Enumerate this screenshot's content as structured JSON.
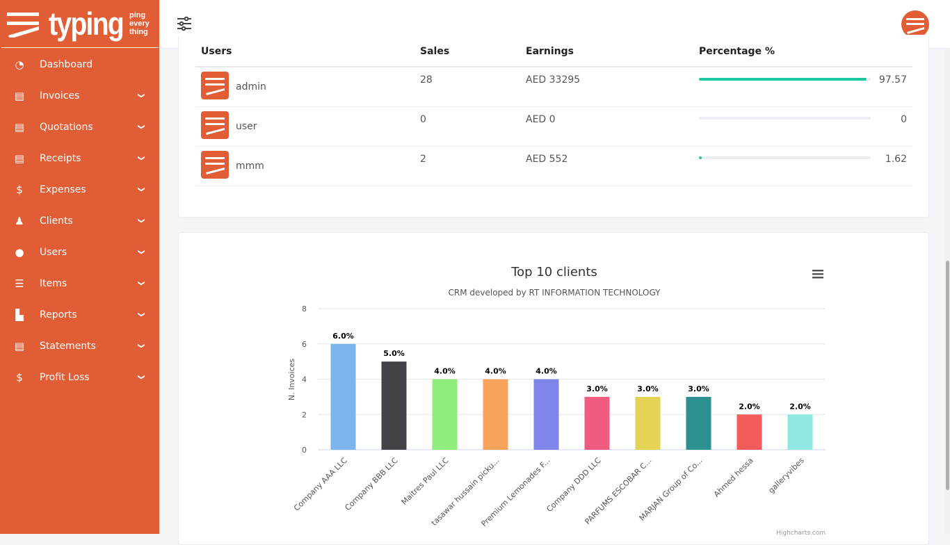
{
  "brand": {
    "word": "typing",
    "tagline": [
      "ping",
      "every",
      "thing"
    ],
    "color": "#e05d36"
  },
  "sidebar": {
    "items": [
      {
        "label": "Dashboard",
        "icon": "dashboard-gauge-icon",
        "glyph": "◔",
        "expandable": false
      },
      {
        "label": "Invoices",
        "icon": "invoice-file-icon",
        "glyph": "▤",
        "expandable": true
      },
      {
        "label": "Quotations",
        "icon": "quotation-file-icon",
        "glyph": "▤",
        "expandable": true
      },
      {
        "label": "Receipts",
        "icon": "receipt-file-icon",
        "glyph": "▤",
        "expandable": true
      },
      {
        "label": "Expenses",
        "icon": "expense-hand-icon",
        "glyph": "$",
        "expandable": true
      },
      {
        "label": "Clients",
        "icon": "clients-users-icon",
        "glyph": "♟",
        "expandable": true
      },
      {
        "label": "Users",
        "icon": "user-icon",
        "glyph": "●",
        "expandable": true
      },
      {
        "label": "Items",
        "icon": "items-list-icon",
        "glyph": "☰",
        "expandable": true
      },
      {
        "label": "Reports",
        "icon": "reports-chart-icon",
        "glyph": "▙",
        "expandable": true
      },
      {
        "label": "Statements",
        "icon": "statement-download-icon",
        "glyph": "▤",
        "expandable": true
      },
      {
        "label": "Profit Loss",
        "icon": "profit-loss-money-icon",
        "glyph": "$",
        "expandable": true
      }
    ]
  },
  "users_table": {
    "headers": [
      "Users",
      "Sales",
      "Earnings",
      "Percentage %"
    ],
    "rows": [
      {
        "user": "admin",
        "sales": "28",
        "earnings": "AED 33295",
        "percentage": "97.57",
        "fill": 97.57
      },
      {
        "user": "user",
        "sales": "0",
        "earnings": "AED 0",
        "percentage": "0",
        "fill": 0
      },
      {
        "user": "mmm",
        "sales": "2",
        "earnings": "AED 552",
        "percentage": "1.62",
        "fill": 1.62
      }
    ],
    "bar_color": "#1ec8a0"
  },
  "chart_data": {
    "type": "bar",
    "title": "Top 10 clients",
    "subtitle": "CRM developed by RT INFORMATION TECHNOLOGY",
    "xlabel": "",
    "ylabel": "N. Invoices",
    "ylim": [
      0,
      8
    ],
    "yticks": [
      0,
      2,
      4,
      6,
      8
    ],
    "grid": true,
    "categories": [
      "Company AAA LLC",
      "Company BBB LLC",
      "Maitres Paul LLC",
      "tasawar hussain picku...",
      "Premium Lemonades F...",
      "Company DDD LLC",
      "PARFUMS ESCOBAR C...",
      "MARJAN Group of Co...",
      "Ahmed hessa",
      "galleryvibes"
    ],
    "values": [
      6,
      5,
      4,
      4,
      4,
      3,
      3,
      3,
      2,
      2
    ],
    "data_labels": [
      "6.0%",
      "5.0%",
      "4.0%",
      "4.0%",
      "4.0%",
      "3.0%",
      "3.0%",
      "3.0%",
      "2.0%",
      "2.0%"
    ],
    "colors": [
      "#7cb5ec",
      "#434348",
      "#90ed7d",
      "#f7a35c",
      "#8085e9",
      "#f15c80",
      "#e4d354",
      "#2b908f",
      "#f45b5b",
      "#91e8e1"
    ],
    "credits": "Highcharts.com",
    "menu_icon": "hamburger-menu-icon"
  }
}
